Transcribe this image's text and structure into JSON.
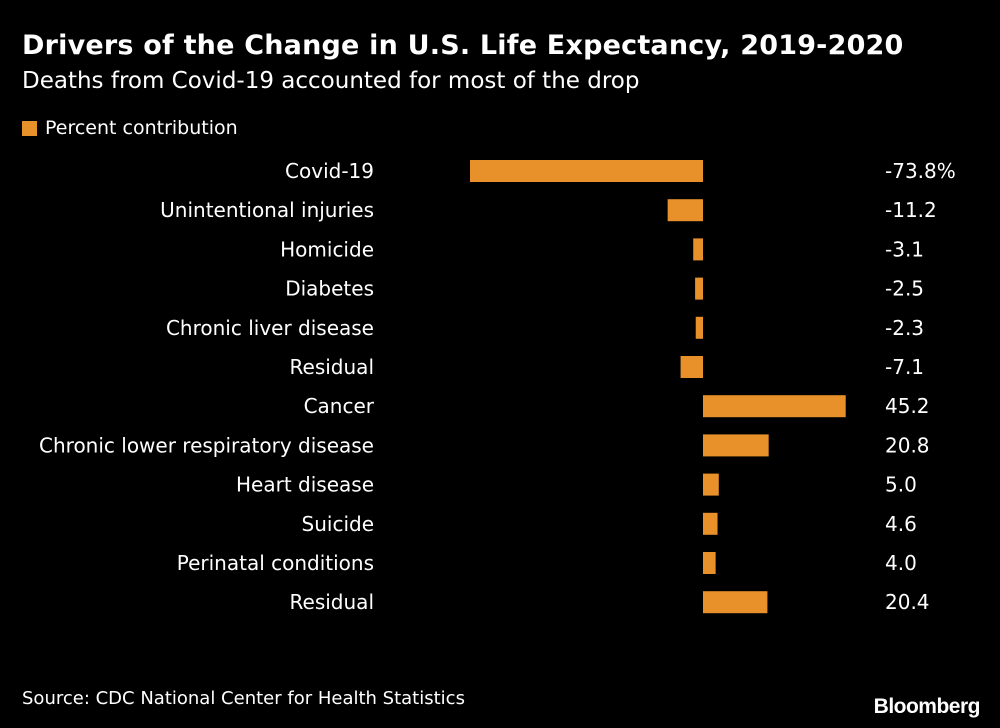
{
  "chart_data": {
    "type": "bar",
    "orientation": "horizontal",
    "title": "Drivers of the Change in U.S. Life Expectancy, 2019-2020",
    "subtitle": "Deaths from Covid-19 accounted for most of the drop",
    "categories": [
      "Covid-19",
      "Unintentional injuries",
      "Homicide",
      "Diabetes",
      "Chronic liver disease",
      "Residual",
      "Cancer",
      "Chronic lower respiratory disease",
      "Heart disease",
      "Suicide",
      "Perinatal conditions",
      "Residual"
    ],
    "series": [
      {
        "name": "Percent contribution",
        "color": "#e8912a",
        "values": [
          -73.8,
          -11.2,
          -3.1,
          -2.5,
          -2.3,
          -7.1,
          45.2,
          20.8,
          5.0,
          4.6,
          4.0,
          20.4
        ]
      }
    ],
    "value_labels": [
      "-73.8%",
      "-11.2",
      "-3.1",
      "-2.5",
      "-2.3",
      "-7.1",
      "45.2",
      "20.8",
      "5.0",
      "4.6",
      "4.0",
      "20.4"
    ],
    "xlim": [
      -73.8,
      45.2
    ],
    "xlabel": "",
    "ylabel": "",
    "grid": false,
    "legend_position": "top-left"
  },
  "legend": {
    "label": "Percent contribution",
    "color": "#e8912a"
  },
  "source": "Source: CDC National Center for Health Statistics",
  "brand": "Bloomberg"
}
